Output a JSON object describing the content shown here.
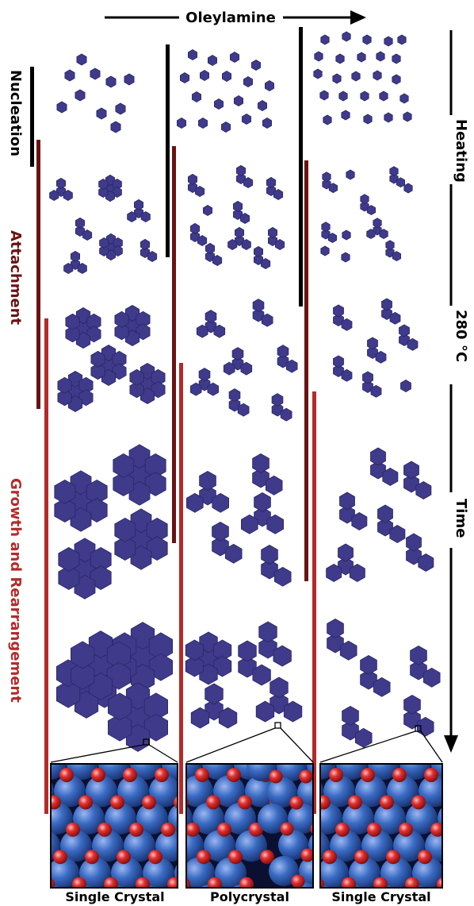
{
  "top_arrow": {
    "label": "Oleylamine"
  },
  "right_axis": {
    "top_label": "Heating",
    "middle_label": "280 °C",
    "bottom_label": "Time"
  },
  "stages": {
    "nucleation": {
      "label": "Nucleation",
      "color": "#000000"
    },
    "attachment": {
      "label": "Attachment",
      "color": "#6b1212"
    },
    "growth": {
      "label": "Growth and Rearrangement",
      "color": "#b42a2a"
    }
  },
  "columns": [
    {
      "caption": "Single Crystal"
    },
    {
      "caption": "Polycrystal"
    },
    {
      "caption": "Single Crystal"
    }
  ],
  "colors": {
    "particle": "#3f3a8a",
    "particle_edge": "#2a2766",
    "atom_blue": "#2f5fb5",
    "atom_red": "#d42a2a",
    "frame": "#000000"
  }
}
